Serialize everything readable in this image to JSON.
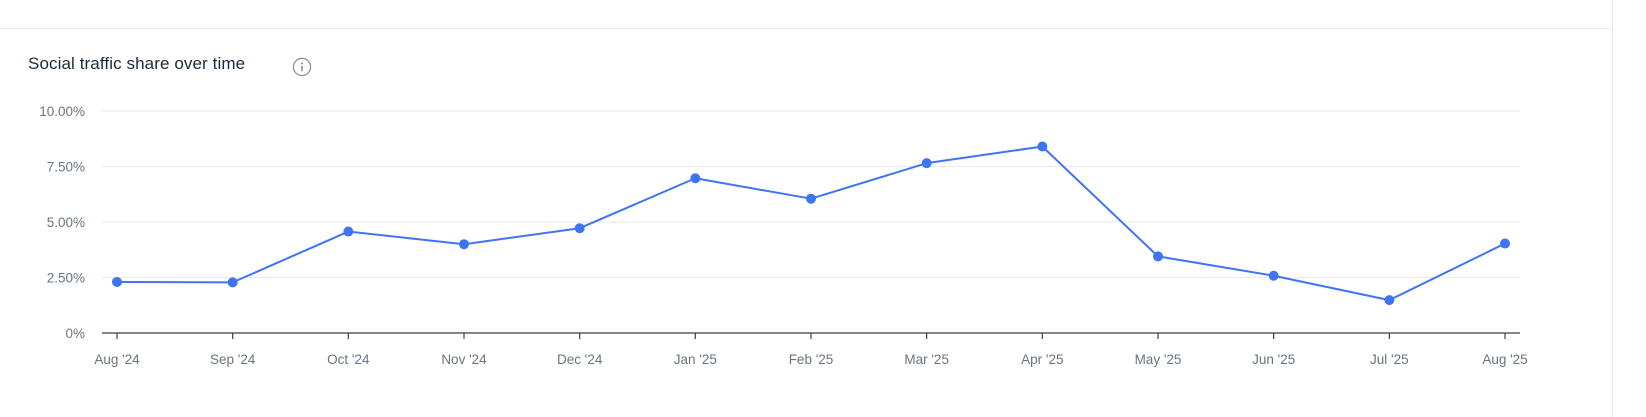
{
  "chart_title": "Social traffic share over time",
  "icons": {
    "info": "info-icon"
  },
  "colors": {
    "line": "#3f74f4",
    "grid": "#e8eaed",
    "axis": "#3a3f47",
    "tick_text": "#6b7480",
    "title": "#1b2a3a"
  },
  "chart_data": {
    "type": "line",
    "title": "Social traffic share over time",
    "xlabel": "",
    "ylabel": "",
    "categories": [
      "Aug '24",
      "Sep '24",
      "Oct '24",
      "Nov '24",
      "Dec '24",
      "Jan '25",
      "Feb '25",
      "Mar '25",
      "Apr '25",
      "May '25",
      "Jun '25",
      "Jul '25",
      "Aug '25"
    ],
    "yticks": [
      "0%",
      "2.50%",
      "5.00%",
      "7.50%",
      "10.00%"
    ],
    "ytick_values": [
      0,
      2.5,
      5,
      7.5,
      10
    ],
    "ylim": [
      0,
      10
    ],
    "grid": true,
    "series": [
      {
        "values": [
          2.3,
          2.28,
          4.57,
          4.0,
          4.72,
          6.97,
          6.05,
          7.65,
          8.4,
          3.45,
          2.58,
          1.48,
          4.03
        ]
      }
    ]
  }
}
